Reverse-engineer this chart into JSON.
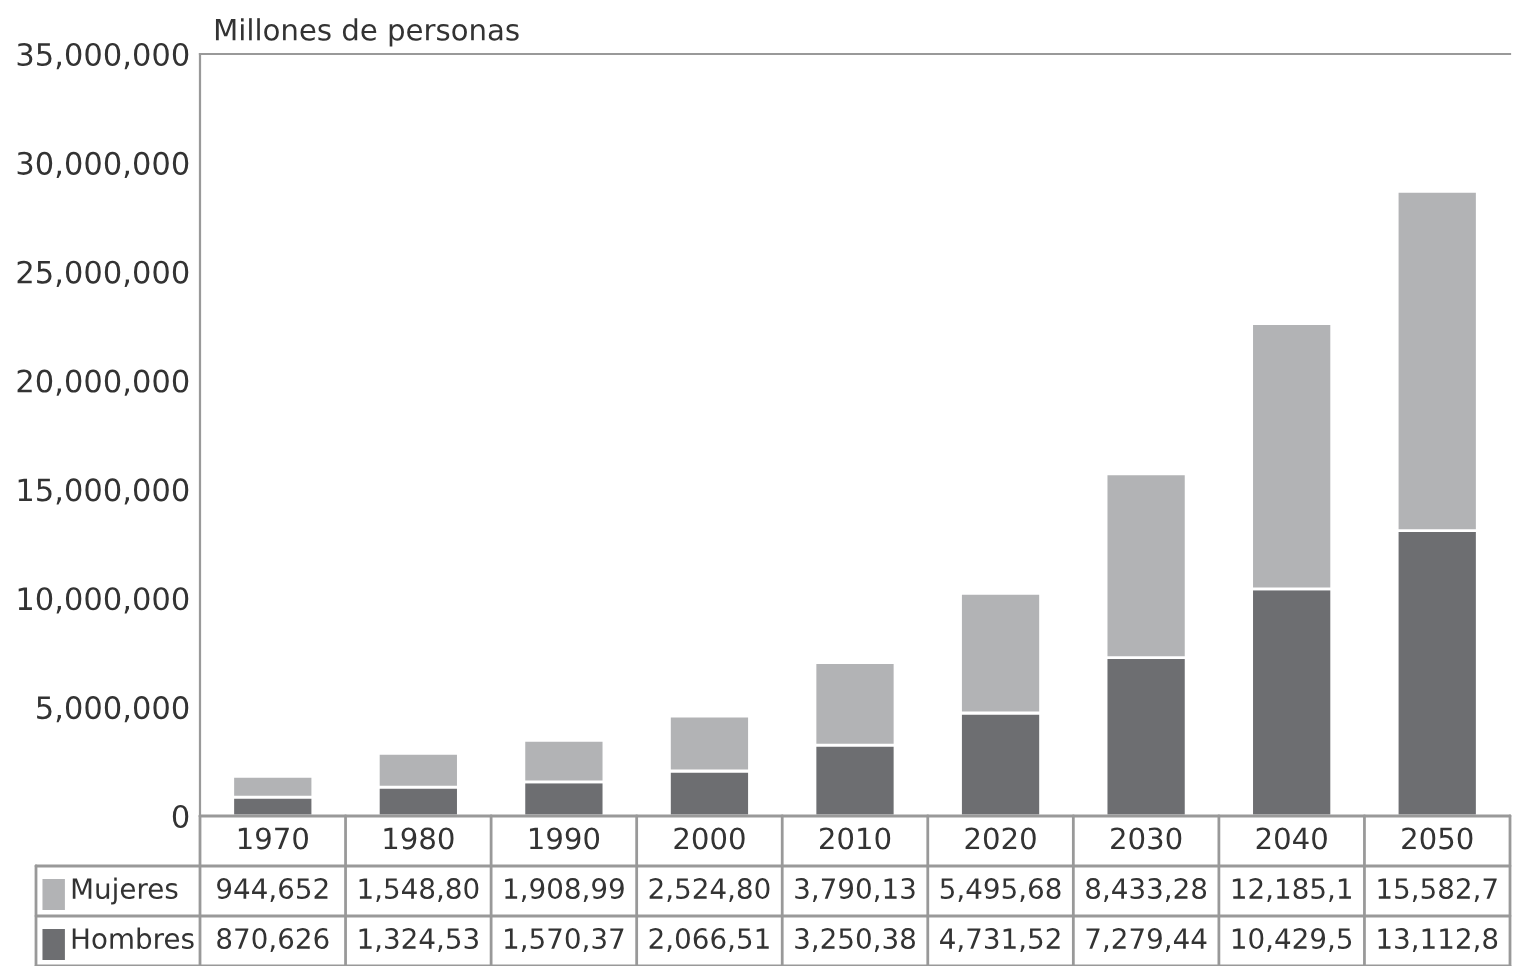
{
  "chart_data": {
    "type": "bar",
    "stacked": true,
    "ylabel": "Millones de personas",
    "categories": [
      "1970",
      "1980",
      "1990",
      "2000",
      "2010",
      "2020",
      "2030",
      "2040",
      "2050"
    ],
    "series": [
      {
        "name": "Hombres",
        "color": "#6d6e71",
        "values": [
          870626,
          1324530,
          1570370,
          2066510,
          3250380,
          4731520,
          7279440,
          10429500,
          13112800
        ],
        "value_labels": [
          "870,626",
          "1,324,53",
          "1,570,37",
          "2,066,51",
          "3,250,38",
          "4,731,52",
          "7,279,44",
          "10,429,5",
          "13,112,8"
        ]
      },
      {
        "name": "Mujeres",
        "color": "#b2b3b5",
        "values": [
          944652,
          1548800,
          1908990,
          2524800,
          3790130,
          5495680,
          8433280,
          12185100,
          15582700
        ],
        "value_labels": [
          "944,652",
          "1,548,80",
          "1,908,99",
          "2,524,80",
          "3,790,13",
          "5,495,68",
          "8,433,28",
          "12,185,1",
          "15,582,7"
        ]
      }
    ],
    "ylim": [
      0,
      35000000
    ],
    "yticks": [
      {
        "value": 0,
        "label": "0"
      },
      {
        "value": 5000000,
        "label": "5,000,000"
      },
      {
        "value": 10000000,
        "label": "10,000,000"
      },
      {
        "value": 15000000,
        "label": "15,000,000"
      },
      {
        "value": 20000000,
        "label": "20,000,000"
      },
      {
        "value": 25000000,
        "label": "25,000,000"
      },
      {
        "value": 30000000,
        "label": "30,000,000"
      },
      {
        "value": 35000000,
        "label": "35,000,000"
      }
    ],
    "grid": false,
    "legend": "bottom"
  }
}
